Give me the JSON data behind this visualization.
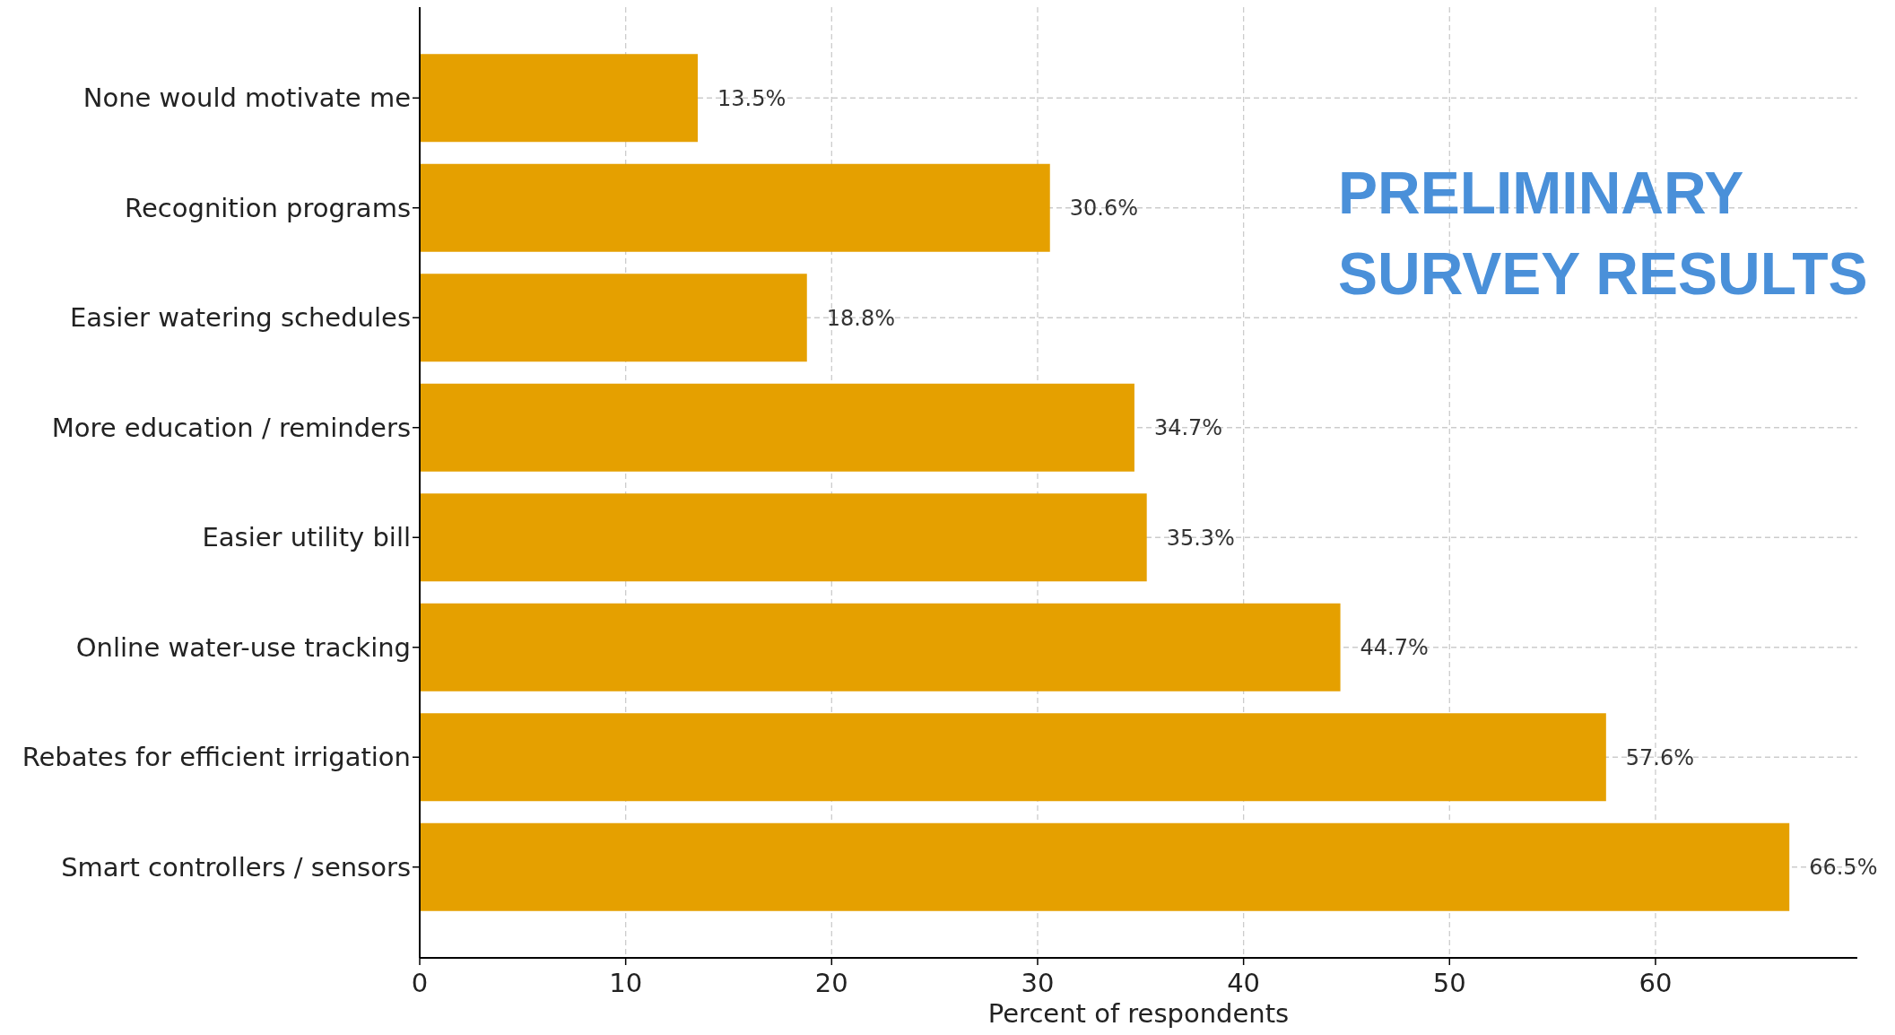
{
  "chart_data": {
    "type": "bar",
    "orientation": "horizontal",
    "xlabel": "Percent of respondents",
    "categories": [
      "None would motivate me",
      "Recognition programs",
      "Easier watering schedules",
      "More education / reminders",
      "Easier utility bill",
      "Online water-use tracking",
      "Rebates for efficient irrigation",
      "Smart controllers / sensors"
    ],
    "values": [
      13.5,
      30.6,
      18.8,
      34.7,
      35.3,
      44.7,
      57.6,
      66.5
    ],
    "value_labels": [
      "13.5%",
      "30.6%",
      "18.8%",
      "34.7%",
      "35.3%",
      "44.7%",
      "57.6%",
      "66.5%"
    ],
    "color": "#e5a000",
    "xlim": [
      0,
      69.8
    ],
    "xticks": [
      0,
      10,
      20,
      30,
      40,
      50,
      60
    ],
    "grid": true,
    "annotations": [
      "PRELIMINARY SURVEY RESULTS"
    ]
  }
}
